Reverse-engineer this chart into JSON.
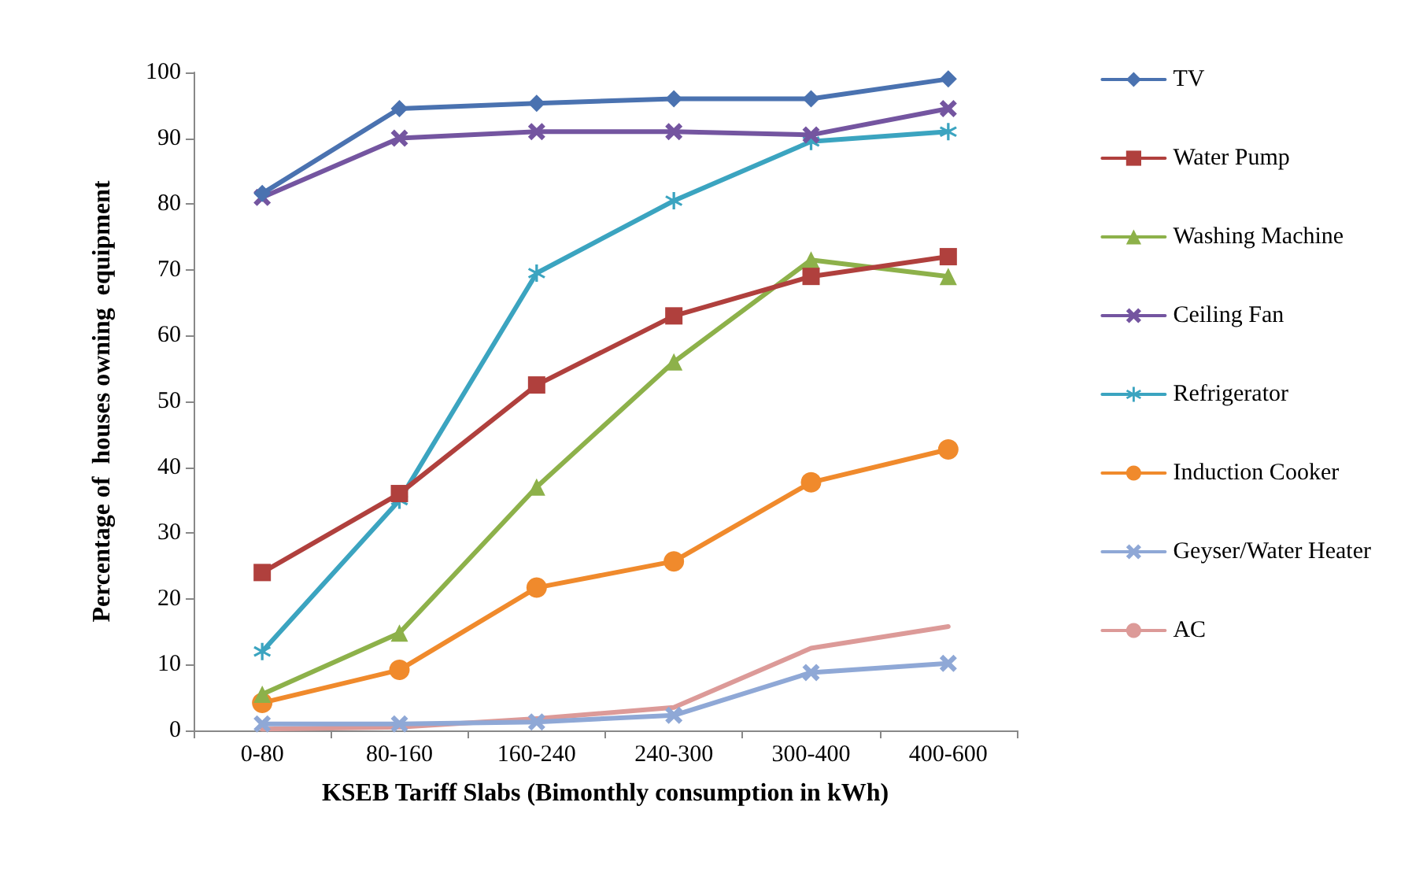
{
  "chart_data": {
    "type": "line",
    "xlabel": "KSEB Tariff Slabs (Bimonthly consumption in kWh)",
    "ylabel": "Percentage of  houses owning  equipment",
    "categories": [
      "0-80",
      "80-160",
      "160-240",
      "240-300",
      "300-400",
      "400-600"
    ],
    "ylim": [
      0,
      100
    ],
    "yticks": [
      0,
      10,
      20,
      30,
      40,
      50,
      60,
      70,
      80,
      90,
      100
    ],
    "grid": false,
    "legend": "right",
    "series": [
      {
        "name": "TV",
        "color": "#4a72b0",
        "marker": "diamond",
        "values": [
          81.6,
          94.5,
          95.3,
          96,
          96,
          99
        ]
      },
      {
        "name": "Water Pump",
        "color": "#b0403d",
        "marker": "square",
        "values": [
          24,
          36,
          52.5,
          63,
          69,
          72
        ]
      },
      {
        "name": "Washing Machine",
        "color": "#8db14a",
        "marker": "triangle",
        "values": [
          5.5,
          14.8,
          37,
          56,
          71.5,
          69
        ]
      },
      {
        "name": "Ceiling Fan",
        "color": "#7455a0",
        "marker": "cross",
        "values": [
          81,
          90,
          91,
          91,
          90.5,
          94.5
        ]
      },
      {
        "name": "Refrigerator",
        "color": "#3ba4c0",
        "marker": "star",
        "values": [
          12,
          35,
          69.5,
          80.5,
          89.5,
          91
        ]
      },
      {
        "name": "Induction Cooker",
        "color": "#f08a2c",
        "marker": "circle",
        "values": [
          4.2,
          9.2,
          21.7,
          25.7,
          37.7,
          42.7
        ]
      },
      {
        "name": "Geyser/Water Heater",
        "color": "#8fa8d6",
        "marker": "cross",
        "values": [
          1,
          1,
          1.3,
          2.3,
          8.8,
          10.2
        ]
      },
      {
        "name": "AC",
        "color": "#dc9a98",
        "marker": "none",
        "values": [
          0.2,
          0.5,
          1.8,
          3.5,
          12.5,
          15.8
        ]
      }
    ]
  }
}
